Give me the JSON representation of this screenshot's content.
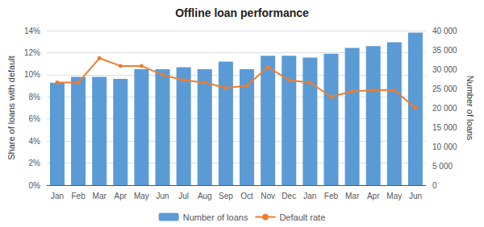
{
  "chart_data": {
    "type": "bar",
    "title": "Offline loan performance",
    "categories": [
      "Jan",
      "Feb",
      "Mar",
      "Apr",
      "May",
      "Jun",
      "Jul",
      "Aug",
      "Sep",
      "Oct",
      "Nov",
      "Dec",
      "Jan",
      "Feb",
      "Mar",
      "Apr",
      "May",
      "Jun"
    ],
    "series": [
      {
        "name": "Number of loans",
        "type": "bar",
        "axis": "y2",
        "color": "#5B9BD5",
        "values": [
          26500,
          28000,
          28000,
          27500,
          30000,
          30000,
          30500,
          30000,
          32000,
          30000,
          33500,
          33500,
          33000,
          34000,
          35500,
          36000,
          37000,
          39500
        ]
      },
      {
        "name": "Default rate",
        "type": "line",
        "color": "#ED7D31",
        "marker": "circle",
        "values": [
          0.093,
          0.093,
          0.115,
          0.108,
          0.108,
          0.1,
          0.095,
          0.093,
          0.088,
          0.09,
          0.107,
          0.095,
          0.093,
          0.08,
          0.085,
          0.086,
          0.086,
          0.07
        ]
      }
    ],
    "ylabel": "Share of loans with default",
    "y2label": "Number of loans",
    "ylim": [
      0,
      0.14
    ],
    "yticks": [
      {
        "value": 0,
        "label": "0%"
      },
      {
        "value": 0.02,
        "label": "2%"
      },
      {
        "value": 0.04,
        "label": "4%"
      },
      {
        "value": 0.06,
        "label": "6%"
      },
      {
        "value": 0.08,
        "label": "8%"
      },
      {
        "value": 0.1,
        "label": "10%"
      },
      {
        "value": 0.12,
        "label": "12%"
      },
      {
        "value": 0.14,
        "label": "14%"
      }
    ],
    "y2lim": [
      0,
      40000
    ],
    "y2ticks": [
      0,
      {
        "value": 5000,
        "label": "5 000"
      },
      {
        "value": 10000,
        "label": "10 000"
      },
      {
        "value": 15000,
        "label": "15 000"
      },
      {
        "value": 20000,
        "label": "20 000"
      },
      {
        "value": 25000,
        "label": "25 000"
      },
      {
        "value": 30000,
        "label": "30 000"
      },
      {
        "value": 35000,
        "label": "35 000"
      },
      {
        "value": 40000,
        "label": "40 000"
      }
    ],
    "grid": true,
    "legend": "bottom"
  }
}
